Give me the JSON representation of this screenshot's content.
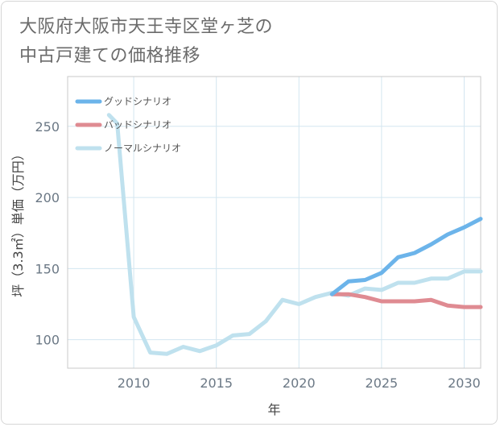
{
  "title_lines": [
    "大阪府大阪市天王寺区堂ヶ芝の",
    "中古戸建ての価格推移"
  ],
  "chart_data": {
    "type": "line",
    "xlabel": "年",
    "ylabel": "坪（3.3㎡）単価（万円）",
    "xlim": [
      2006,
      2031
    ],
    "ylim": [
      80,
      285
    ],
    "xticks": [
      2010,
      2015,
      2020,
      2025,
      2030
    ],
    "yticks": [
      100,
      150,
      200,
      250
    ],
    "grid": true,
    "legend_position": "top-left",
    "series": [
      {
        "name": "グッドシナリオ",
        "color": "#6cb4ea",
        "x": [
          2022,
          2023,
          2024,
          2025,
          2026,
          2027,
          2028,
          2029,
          2030,
          2031
        ],
        "y": [
          132,
          141,
          142,
          147,
          158,
          161,
          167,
          174,
          179,
          185
        ]
      },
      {
        "name": "バッドシナリオ",
        "color": "#df8b92",
        "x": [
          2022,
          2023,
          2024,
          2025,
          2026,
          2027,
          2028,
          2029,
          2030,
          2031
        ],
        "y": [
          132,
          132,
          130,
          127,
          127,
          127,
          128,
          124,
          123,
          123
        ]
      },
      {
        "name": "ノーマルシナリオ",
        "color": "#bfe1ee",
        "x": [
          2008.5,
          2009,
          2010,
          2011,
          2012,
          2013,
          2014,
          2015,
          2016,
          2017,
          2018,
          2019,
          2020,
          2021,
          2022,
          2023,
          2024,
          2025,
          2026,
          2027,
          2028,
          2029,
          2030,
          2031
        ],
        "y": [
          258,
          252,
          116,
          91,
          90,
          95,
          92,
          96,
          103,
          104,
          113,
          128,
          125,
          130,
          133,
          131,
          136,
          135,
          140,
          140,
          143,
          143,
          148,
          148
        ]
      }
    ]
  }
}
